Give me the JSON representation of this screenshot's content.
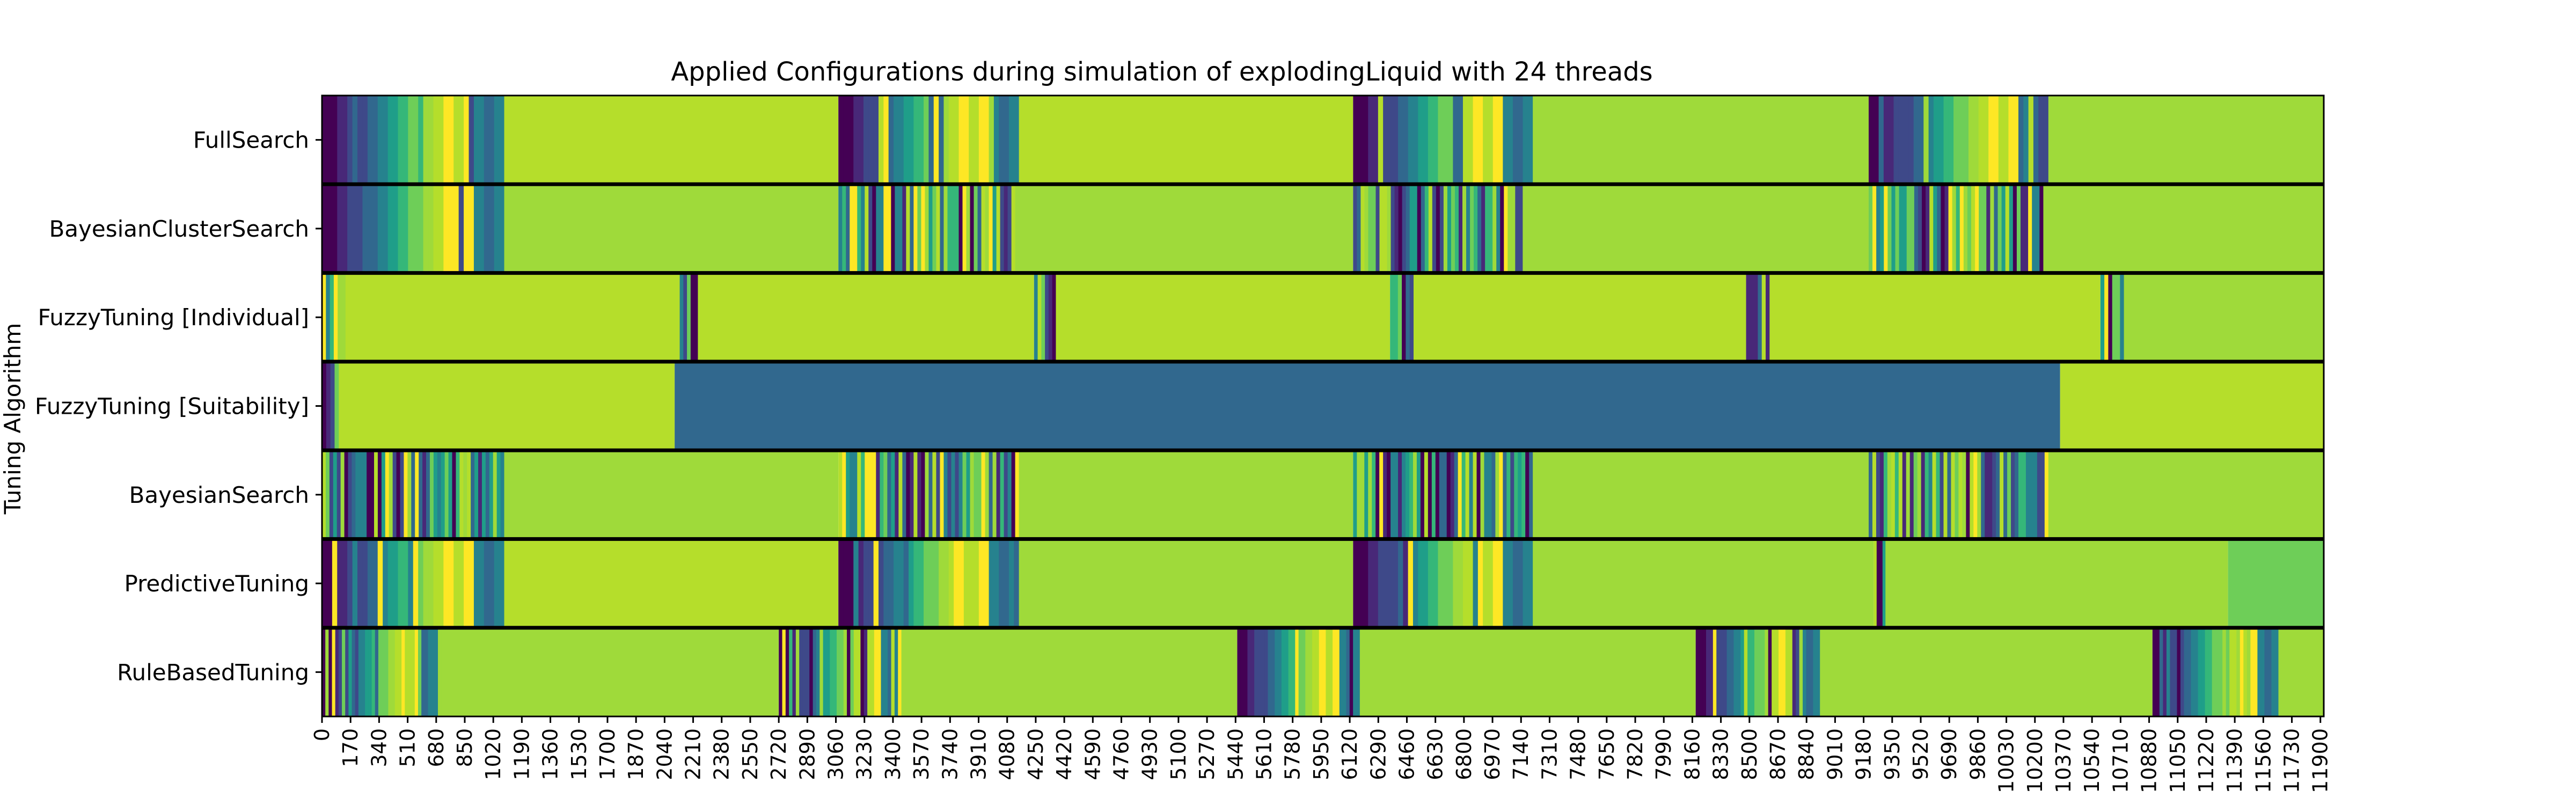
{
  "chart_data": {
    "type": "heatmap",
    "title": "Applied Configurations during simulation of explodingLiquid with 24 threads",
    "xlabel": "",
    "ylabel": "Tuning Algorithm",
    "xlim": [
      0,
      11920
    ],
    "x_tick_step": 170,
    "colormap": "viridis",
    "colors": {
      "deep_purple": "#440154",
      "purple": "#482878",
      "indigo": "#3e4989",
      "blue": "#31688e",
      "teal": "#26828e",
      "green_teal": "#1f9e89",
      "green": "#35b779",
      "light_green": "#6ece58",
      "yellow_green": "#9fda3a",
      "lime": "#b5de2b",
      "yellow": "#fde725",
      "divider": "#000000"
    },
    "rows": [
      {
        "name": "FullSearch",
        "segments": [
          {
            "kind": "gradient",
            "start": 0,
            "end": 1085
          },
          {
            "kind": "solid",
            "start": 1085,
            "end": 3075,
            "color": "#b5de2b"
          },
          {
            "kind": "gradient",
            "start": 3075,
            "end": 4150
          },
          {
            "kind": "solid",
            "start": 4150,
            "end": 6140,
            "color": "#b5de2b"
          },
          {
            "kind": "gradient",
            "start": 6140,
            "end": 7210
          },
          {
            "kind": "solid",
            "start": 7210,
            "end": 9210,
            "color": "#9fda3a"
          },
          {
            "kind": "gradient",
            "start": 9210,
            "end": 10280
          },
          {
            "kind": "solid",
            "start": 10280,
            "end": 11920,
            "color": "#9fda3a"
          }
        ]
      },
      {
        "name": "BayesianClusterSearch",
        "segments": [
          {
            "kind": "gradient",
            "start": 0,
            "end": 1085
          },
          {
            "kind": "solid",
            "start": 1085,
            "end": 3075,
            "color": "#9fda3a"
          },
          {
            "kind": "noise",
            "start": 3075,
            "end": 4150
          },
          {
            "kind": "solid",
            "start": 4150,
            "end": 6140,
            "color": "#9fda3a"
          },
          {
            "kind": "noise",
            "start": 6140,
            "end": 7150
          },
          {
            "kind": "solid",
            "start": 7150,
            "end": 9210,
            "color": "#9fda3a"
          },
          {
            "kind": "noise",
            "start": 9210,
            "end": 10250
          },
          {
            "kind": "solid",
            "start": 10250,
            "end": 11920,
            "color": "#9fda3a"
          }
        ]
      },
      {
        "name": "FuzzyTuning [Individual]",
        "segments": [
          {
            "kind": "noise",
            "start": 0,
            "end": 140
          },
          {
            "kind": "solid",
            "start": 140,
            "end": 2130,
            "color": "#b5de2b"
          },
          {
            "kind": "noise",
            "start": 2130,
            "end": 2260
          },
          {
            "kind": "solid",
            "start": 2260,
            "end": 4240,
            "color": "#b5de2b"
          },
          {
            "kind": "noise",
            "start": 4240,
            "end": 4370
          },
          {
            "kind": "solid",
            "start": 4370,
            "end": 6360,
            "color": "#b5de2b"
          },
          {
            "kind": "noise",
            "start": 6360,
            "end": 6500
          },
          {
            "kind": "solid",
            "start": 6500,
            "end": 8480,
            "color": "#b5de2b"
          },
          {
            "kind": "noise",
            "start": 8480,
            "end": 8620
          },
          {
            "kind": "solid",
            "start": 8620,
            "end": 10590,
            "color": "#b5de2b"
          },
          {
            "kind": "noise",
            "start": 10590,
            "end": 10730
          },
          {
            "kind": "solid",
            "start": 10730,
            "end": 11920,
            "color": "#9fda3a"
          }
        ]
      },
      {
        "name": "FuzzyTuning [Suitability]",
        "segments": [
          {
            "kind": "noise",
            "start": 0,
            "end": 100
          },
          {
            "kind": "solid",
            "start": 100,
            "end": 2100,
            "color": "#b5de2b"
          },
          {
            "kind": "solid",
            "start": 2100,
            "end": 10350,
            "color": "#31688e"
          },
          {
            "kind": "solid",
            "start": 10350,
            "end": 11920,
            "color": "#b5de2b"
          }
        ]
      },
      {
        "name": "BayesianSearch",
        "segments": [
          {
            "kind": "noise",
            "start": 0,
            "end": 1085
          },
          {
            "kind": "solid",
            "start": 1085,
            "end": 3075,
            "color": "#9fda3a"
          },
          {
            "kind": "noise",
            "start": 3075,
            "end": 4150
          },
          {
            "kind": "solid",
            "start": 4150,
            "end": 6140,
            "color": "#9fda3a"
          },
          {
            "kind": "noise",
            "start": 6140,
            "end": 7210
          },
          {
            "kind": "solid",
            "start": 7210,
            "end": 9210,
            "color": "#9fda3a"
          },
          {
            "kind": "noise",
            "start": 9210,
            "end": 10280
          },
          {
            "kind": "solid",
            "start": 10280,
            "end": 11920,
            "color": "#9fda3a"
          }
        ]
      },
      {
        "name": "PredictiveTuning",
        "segments": [
          {
            "kind": "gradient",
            "start": 0,
            "end": 1085
          },
          {
            "kind": "solid",
            "start": 1085,
            "end": 3075,
            "color": "#b5de2b"
          },
          {
            "kind": "gradient",
            "start": 3075,
            "end": 4150
          },
          {
            "kind": "solid",
            "start": 4150,
            "end": 6140,
            "color": "#9fda3a"
          },
          {
            "kind": "gradient",
            "start": 6140,
            "end": 7210
          },
          {
            "kind": "solid",
            "start": 7210,
            "end": 9240,
            "color": "#9fda3a"
          },
          {
            "kind": "noise",
            "start": 9240,
            "end": 9310
          },
          {
            "kind": "solid",
            "start": 9310,
            "end": 11350,
            "color": "#9fda3a"
          },
          {
            "kind": "solid",
            "start": 11350,
            "end": 11920,
            "color": "#6ece58"
          }
        ]
      },
      {
        "name": "RuleBasedTuning",
        "segments": [
          {
            "kind": "gradient",
            "start": 0,
            "end": 710
          },
          {
            "kind": "solid",
            "start": 710,
            "end": 2720,
            "color": "#9fda3a"
          },
          {
            "kind": "gradient",
            "start": 2720,
            "end": 3450
          },
          {
            "kind": "solid",
            "start": 3450,
            "end": 5450,
            "color": "#9fda3a"
          },
          {
            "kind": "gradient",
            "start": 5450,
            "end": 6180
          },
          {
            "kind": "solid",
            "start": 6180,
            "end": 8180,
            "color": "#9fda3a"
          },
          {
            "kind": "gradient",
            "start": 8180,
            "end": 8920
          },
          {
            "kind": "solid",
            "start": 8920,
            "end": 10900,
            "color": "#9fda3a"
          },
          {
            "kind": "gradient",
            "start": 10900,
            "end": 11650
          },
          {
            "kind": "solid",
            "start": 11650,
            "end": 11920,
            "color": "#9fda3a"
          }
        ]
      }
    ]
  }
}
